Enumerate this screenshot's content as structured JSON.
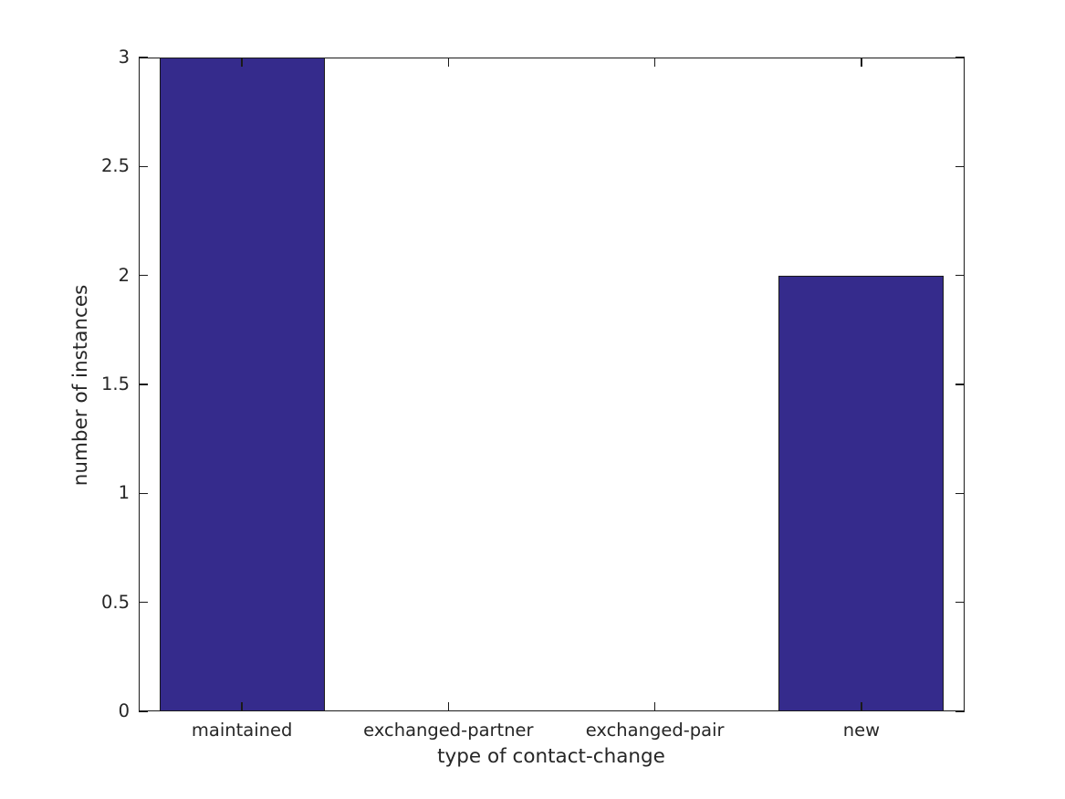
{
  "chart_data": {
    "type": "bar",
    "title": "",
    "categories": [
      "maintained",
      "exchanged-partner",
      "exchanged-pair",
      "new"
    ],
    "values": [
      3,
      0,
      0,
      2
    ],
    "xlabel": "type of contact-change",
    "ylabel": "number of instances",
    "ylim": [
      0,
      3
    ],
    "yticks": [
      0,
      0.5,
      1,
      1.5,
      2,
      2.5,
      3
    ],
    "ytick_labels": [
      "0",
      "0.5",
      "1",
      "1.5",
      "2",
      "2.5",
      "3"
    ],
    "bar_width_fraction": 0.8,
    "bar_color": "#352b8c",
    "bar_edge_color": "#1a1a1a",
    "axis_color": "#1a1a1a",
    "text_color": "#262626",
    "background_color": "#ffffff",
    "grid": false,
    "legend": "none"
  }
}
